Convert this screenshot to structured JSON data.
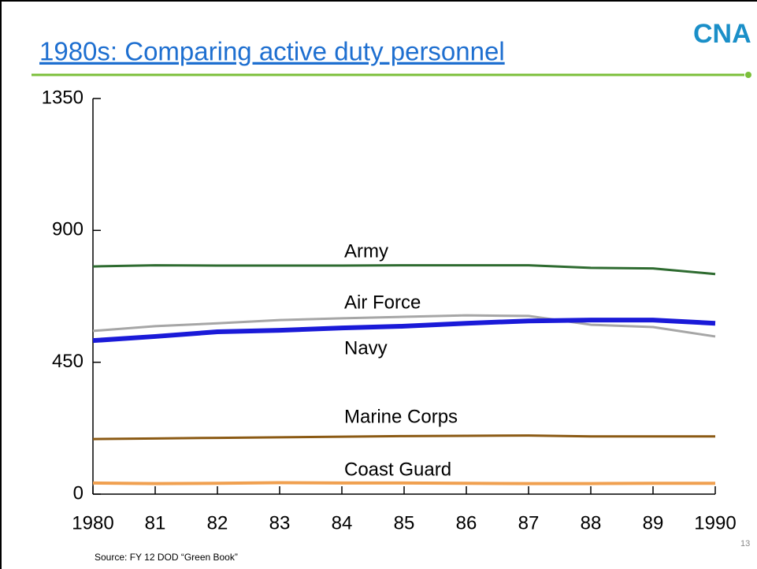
{
  "title": "1980s: Comparing active duty personnel",
  "logo": "CNA",
  "source": "Source: FY 12 DOD “Green Book”",
  "page_number": "13",
  "chart_data": {
    "type": "line",
    "x": [
      1980,
      1981,
      1982,
      1983,
      1984,
      1985,
      1986,
      1987,
      1988,
      1989,
      1990
    ],
    "xlim": [
      1980,
      1990
    ],
    "xticks": [
      1980,
      {
        "value": 1981,
        "label": "81"
      },
      {
        "value": 1982,
        "label": "82"
      },
      {
        "value": 1983,
        "label": "83"
      },
      {
        "value": 1984,
        "label": "84"
      },
      {
        "value": 1985,
        "label": "85"
      },
      {
        "value": 1986,
        "label": "86"
      },
      {
        "value": 1987,
        "label": "87"
      },
      {
        "value": 1988,
        "label": "88"
      },
      {
        "value": 1989,
        "label": "89"
      },
      1990
    ],
    "ylim": [
      0,
      1350
    ],
    "yticks": [
      0,
      450,
      900,
      1350
    ],
    "series": [
      {
        "name": "Army",
        "color": "#2e6b30",
        "width": 3,
        "values": [
          777,
          781,
          780,
          780,
          780,
          781,
          781,
          781,
          772,
          770,
          751
        ]
      },
      {
        "name": "Air Force",
        "color": "#a6a6a6",
        "width": 3,
        "values": [
          557,
          573,
          583,
          594,
          600,
          605,
          610,
          608,
          578,
          570,
          538
        ]
      },
      {
        "name": "Navy",
        "color": "#1a1ad8",
        "width": 6,
        "values": [
          524,
          538,
          554,
          559,
          567,
          573,
          583,
          591,
          594,
          594,
          583
        ]
      },
      {
        "name": "Marine Corps",
        "color": "#8b5a14",
        "width": 3,
        "values": [
          188,
          190,
          192,
          194,
          196,
          198,
          199,
          200,
          197,
          197,
          197
        ]
      },
      {
        "name": "Coast Guard",
        "color": "#f0a050",
        "width": 4,
        "values": [
          38,
          36,
          37,
          39,
          38,
          38,
          37,
          36,
          36,
          37,
          37
        ]
      }
    ]
  }
}
